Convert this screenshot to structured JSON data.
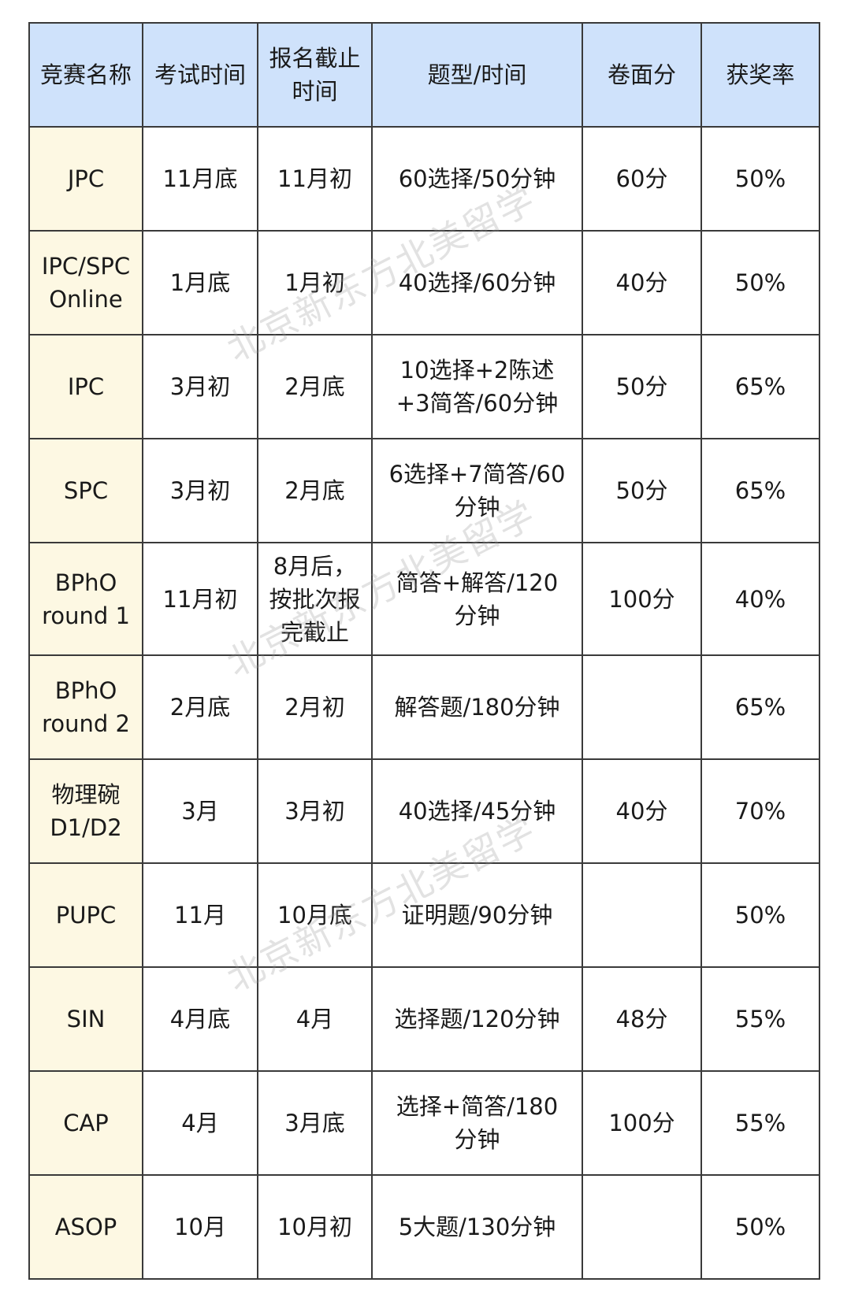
{
  "headers": [
    "竞赛名称",
    "考试时间",
    "报名截止\n时间",
    "题型/时间",
    "卷面分",
    "获奖率"
  ],
  "rows": [
    [
      "JPC",
      "11月底",
      "11月初",
      "60选择/50分钟",
      "60分",
      "50%"
    ],
    [
      "IPC/SPC\nOnline",
      "1月底",
      "1月初",
      "40选择/60分钟",
      "40分",
      "50%"
    ],
    [
      "IPC",
      "3月初",
      "2月底",
      "10选择+2陈述\n+3简答/60分钟",
      "50分",
      "65%"
    ],
    [
      "SPC",
      "3月初",
      "2月底",
      "6选择+7简答/60\n分钟",
      "50分",
      "65%"
    ],
    [
      "BPhO\nround 1",
      "11月初",
      "8月后，\n按批次报\n完截止",
      "简答+解答/120\n分钟",
      "100分",
      "40%"
    ],
    [
      "BPhO\nround 2",
      "2月底",
      "2月初",
      "解答题/180分钟",
      "",
      "65%"
    ],
    [
      "物理碗\nD1/D2",
      "3月",
      "3月初",
      "40选择/45分钟",
      "40分",
      "70%"
    ],
    [
      "PUPC",
      "11月",
      "10月底",
      "证明题/90分钟",
      "",
      "50%"
    ],
    [
      "SIN",
      "4月底",
      "4月",
      "选择题/120分钟",
      "48分",
      "55%"
    ],
    [
      "CAP",
      "4月",
      "3月底",
      "选择+简答/180\n分钟",
      "100分",
      "55%"
    ],
    [
      "ASOP",
      "10月",
      "10月初",
      "5大题/130分钟",
      "",
      "50%"
    ]
  ],
  "watermark": "北京新东方北美留学",
  "colors": {
    "header_bg": "#cfe2fb",
    "name_col_bg": "#fdf8e3",
    "border": "#3a3a3a"
  }
}
